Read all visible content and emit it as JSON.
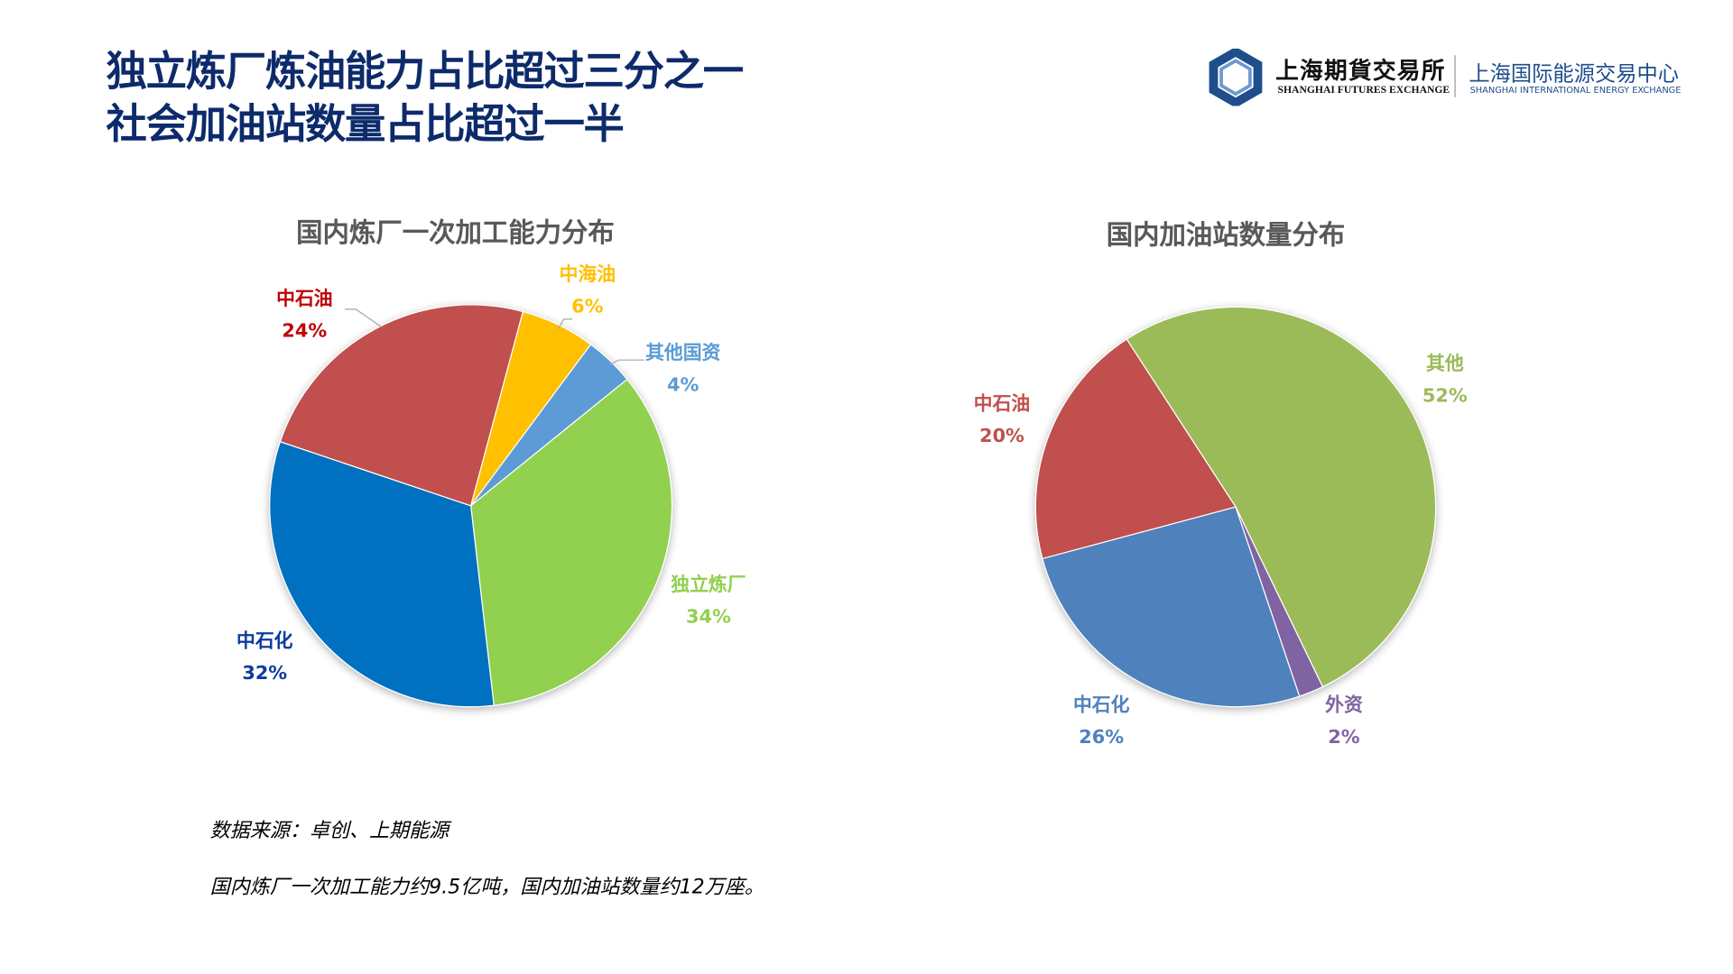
{
  "header": {
    "title_line1": "独立炼厂炼油能力占比超过三分之一",
    "title_line2": "社会加油站数量占比超过一半",
    "title_color": "#0D2A6B",
    "logo": {
      "shfe_cn": "上海期貨交易所",
      "shfe_en": "SHANGHAI FUTURES EXCHANGE",
      "ine_cn": "上海国际能源交易中心",
      "ine_en": "SHANGHAI INTERNATIONAL ENERGY EXCHANGE"
    }
  },
  "chart_data": [
    {
      "type": "pie",
      "title": "国内炼厂一次加工能力分布",
      "start_angle_deg": 15,
      "slices": [
        {
          "name": "中海油",
          "value": 6,
          "label": "6%",
          "color": "#FFC000",
          "label_color": "#FFC000"
        },
        {
          "name": "其他国资",
          "value": 4,
          "label": "4%",
          "color": "#5B9BD5",
          "label_color": "#5B9BD5"
        },
        {
          "name": "独立炼厂",
          "value": 34,
          "label": "34%",
          "color": "#92D050",
          "label_color": "#92D050"
        },
        {
          "name": "中石化",
          "value": 32,
          "label": "32%",
          "color": "#0070C0",
          "label_color": "#0B3C9C"
        },
        {
          "name": "中石油",
          "value": 24,
          "label": "24%",
          "color": "#C0504D",
          "label_color": "#C00000"
        }
      ]
    },
    {
      "type": "pie",
      "title": "国内加油站数量分布",
      "start_angle_deg": -33,
      "slices": [
        {
          "name": "其他",
          "value": 52,
          "label": "52%",
          "color": "#9BBB59",
          "label_color": "#9BBB59"
        },
        {
          "name": "外资",
          "value": 2,
          "label": "2%",
          "color": "#8064A2",
          "label_color": "#8064A2"
        },
        {
          "name": "中石化",
          "value": 26,
          "label": "26%",
          "color": "#4F81BD",
          "label_color": "#4F81BD"
        },
        {
          "name": "中石油",
          "value": 20,
          "label": "20%",
          "color": "#C0504D",
          "label_color": "#C0504D"
        }
      ]
    }
  ],
  "notes": {
    "source": "数据来源：卓创、上期能源",
    "summary": "国内炼厂一次加工能力约9.5亿吨，国内加油站数量约12万座。"
  }
}
